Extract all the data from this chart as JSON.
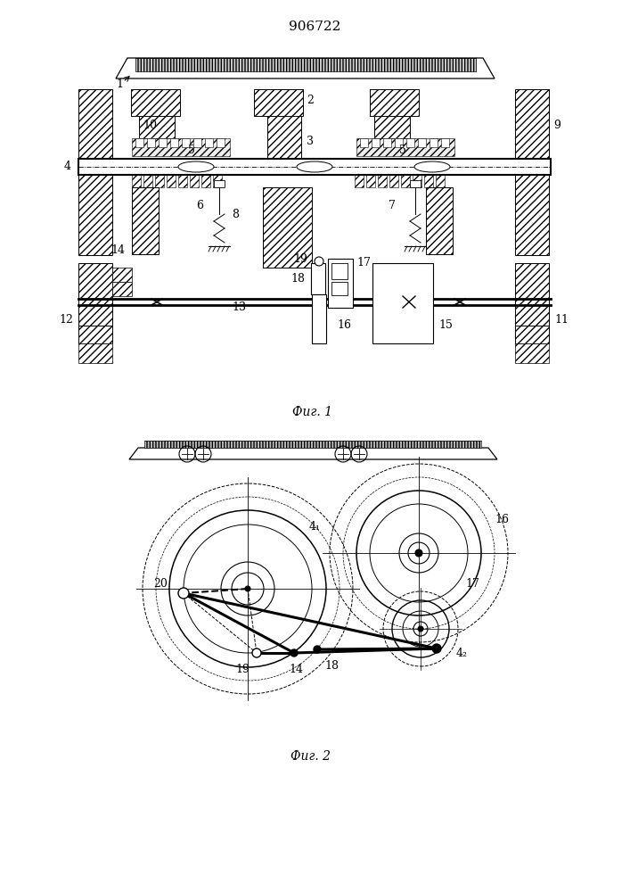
{
  "title": "906722",
  "fig1_caption": "Фиг. 1",
  "fig2_caption": "Фиг. 2",
  "bg_color": "#ffffff",
  "line_color": "#000000"
}
